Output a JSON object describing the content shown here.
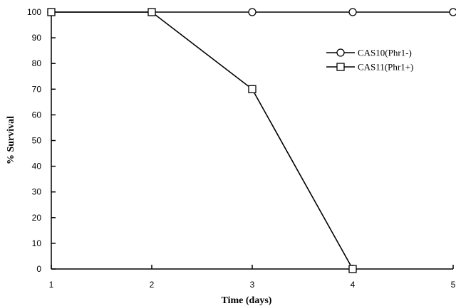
{
  "chart_data": {
    "type": "line",
    "xlabel": "Time (days)",
    "ylabel": "% Survival",
    "x": [
      1,
      2,
      3,
      4,
      5
    ],
    "xlim": [
      1,
      5
    ],
    "ylim": [
      0,
      100
    ],
    "x_ticks": [
      "1",
      "2",
      "3",
      "4",
      "5"
    ],
    "y_ticks": [
      "0",
      "10",
      "20",
      "30",
      "40",
      "50",
      "60",
      "70",
      "80",
      "90",
      "100"
    ],
    "grid": false,
    "legend_position": "top-right",
    "series": [
      {
        "name": "CAS10(Phr1-)",
        "marker": "circle",
        "x": [
          1,
          2,
          3,
          4,
          5
        ],
        "values": [
          100,
          100,
          100,
          100,
          100
        ]
      },
      {
        "name": "CAS11(Phr1+)",
        "marker": "square",
        "x": [
          1,
          2,
          3,
          4
        ],
        "values": [
          100,
          100,
          70,
          0
        ]
      }
    ],
    "colors": {
      "line": "#000000",
      "marker_fill": "#ffffff"
    }
  }
}
